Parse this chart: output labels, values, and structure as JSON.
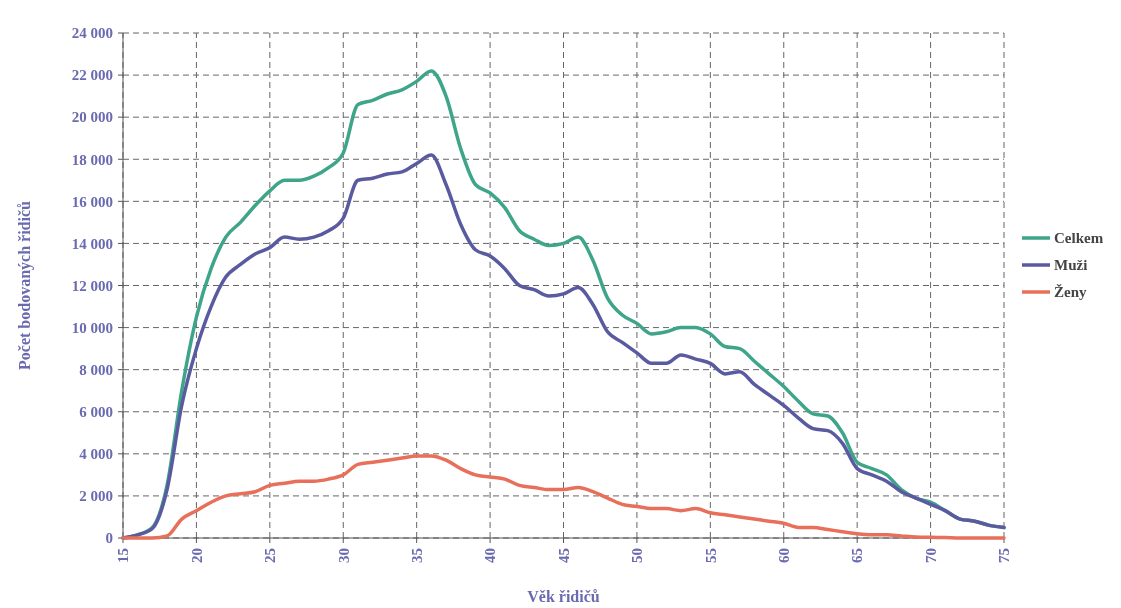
{
  "chart_data": {
    "type": "line",
    "ylabel": "Počet bodovaných řidičů",
    "xlabel": "Věk řidičů",
    "x": [
      15,
      16,
      17,
      18,
      19,
      20,
      21,
      22,
      23,
      24,
      25,
      26,
      27,
      28,
      29,
      30,
      31,
      32,
      33,
      34,
      35,
      36,
      37,
      38,
      39,
      40,
      41,
      42,
      43,
      44,
      45,
      46,
      47,
      48,
      49,
      50,
      51,
      52,
      53,
      54,
      55,
      56,
      57,
      58,
      59,
      60,
      61,
      62,
      63,
      64,
      65,
      66,
      67,
      68,
      69,
      70,
      71,
      72,
      73,
      74,
      75
    ],
    "series": [
      {
        "name": "Celkem",
        "color": "#3fa58a",
        "values": [
          0,
          150,
          500,
          2500,
          7000,
          10500,
          12800,
          14300,
          15000,
          15800,
          16500,
          17000,
          17000,
          17200,
          17600,
          18300,
          20600,
          20800,
          21100,
          21300,
          21700,
          22200,
          21000,
          18500,
          16800,
          16400,
          15700,
          14600,
          14200,
          13900,
          14000,
          14300,
          13200,
          11400,
          10600,
          10200,
          9700,
          9800,
          10000,
          10000,
          9700,
          9100,
          9000,
          8400,
          7800,
          7200,
          6500,
          5900,
          5800,
          5000,
          3600,
          3300,
          3000,
          2300,
          1900,
          1700,
          1300,
          900,
          800,
          600,
          500
        ]
      },
      {
        "name": "Muži",
        "color": "#5a5aa0",
        "values": [
          0,
          150,
          450,
          2300,
          6300,
          9000,
          11000,
          12400,
          13000,
          13500,
          13800,
          14300,
          14200,
          14300,
          14600,
          15200,
          17000,
          17100,
          17300,
          17400,
          17800,
          18200,
          16800,
          14900,
          13700,
          13400,
          12800,
          12000,
          11800,
          11500,
          11600,
          11900,
          11100,
          9800,
          9300,
          8800,
          8300,
          8300,
          8700,
          8500,
          8300,
          7800,
          7900,
          7300,
          6800,
          6300,
          5700,
          5200,
          5100,
          4500,
          3300,
          3000,
          2700,
          2200,
          1900,
          1600,
          1300,
          900,
          800,
          600,
          500
        ]
      },
      {
        "name": "Ženy",
        "color": "#e8705a",
        "values": [
          0,
          0,
          0,
          100,
          900,
          1300,
          1700,
          2000,
          2100,
          2200,
          2500,
          2600,
          2700,
          2700,
          2800,
          3000,
          3500,
          3600,
          3700,
          3800,
          3900,
          3900,
          3700,
          3300,
          3000,
          2900,
          2800,
          2500,
          2400,
          2300,
          2300,
          2400,
          2200,
          1900,
          1600,
          1500,
          1400,
          1400,
          1300,
          1400,
          1200,
          1100,
          1000,
          900,
          800,
          700,
          500,
          500,
          400,
          300,
          200,
          150,
          150,
          100,
          50,
          30,
          20,
          0,
          0,
          0,
          0
        ]
      }
    ],
    "xlim": [
      15,
      75
    ],
    "xticks": [
      15,
      20,
      25,
      30,
      35,
      40,
      45,
      50,
      55,
      60,
      65,
      70,
      75
    ],
    "ylim": [
      0,
      24000
    ],
    "yticks": [
      0,
      {
        "value": 2000,
        "label": "2 000"
      },
      {
        "value": 4000,
        "label": "4 000"
      },
      {
        "value": 6000,
        "label": "6 000"
      },
      {
        "value": 8000,
        "label": "8 000"
      },
      {
        "value": 10000,
        "label": "10 000"
      },
      {
        "value": 12000,
        "label": "12 000"
      },
      {
        "value": 14000,
        "label": "14 000"
      },
      {
        "value": 16000,
        "label": "16 000"
      },
      {
        "value": 18000,
        "label": "18 000"
      },
      {
        "value": 20000,
        "label": "20 000"
      },
      {
        "value": 22000,
        "label": "22 000"
      },
      {
        "value": 24000,
        "label": "24 000"
      }
    ],
    "grid": true,
    "legend": "right",
    "marker": "none",
    "line_style": "solid"
  }
}
